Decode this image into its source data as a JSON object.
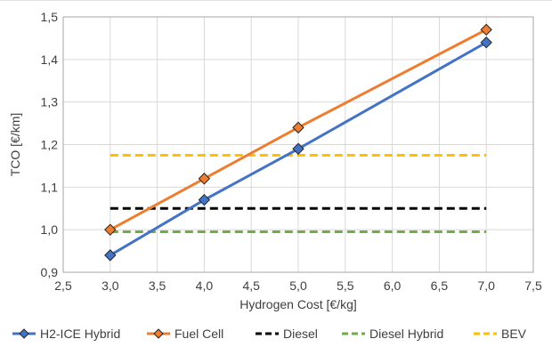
{
  "chart_data": {
    "type": "line",
    "title": "",
    "xlabel": "Hydrogen Cost [€/kg]",
    "ylabel": "TCO [€/km]",
    "xlim": [
      2.5,
      7.5
    ],
    "ylim": [
      0.9,
      1.5
    ],
    "x_ticks": [
      "2,5",
      "3,0",
      "3,5",
      "4,0",
      "4,5",
      "5,0",
      "5,5",
      "6,0",
      "6,5",
      "7,0",
      "7,5"
    ],
    "y_ticks": [
      "0,9",
      "1,0",
      "1,1",
      "1,2",
      "1,3",
      "1,4",
      "1,5"
    ],
    "grid": true,
    "legend_position": "bottom",
    "series": [
      {
        "name": "H2-ICE Hybrid",
        "style": "solid-diamond",
        "color": "#4472C4",
        "x": [
          3,
          4,
          5,
          7
        ],
        "y": [
          0.94,
          1.07,
          1.19,
          1.44
        ]
      },
      {
        "name": "Fuel Cell",
        "style": "solid-diamond",
        "color": "#ED7D31",
        "x": [
          3,
          4,
          5,
          7
        ],
        "y": [
          1.0,
          1.12,
          1.24,
          1.47
        ]
      },
      {
        "name": "Diesel",
        "style": "dashed",
        "color": "#000000",
        "x": [
          3,
          7
        ],
        "y": [
          1.05,
          1.05
        ]
      },
      {
        "name": "Diesel Hybrid",
        "style": "dashed",
        "color": "#70AD47",
        "x": [
          3,
          7
        ],
        "y": [
          0.995,
          0.995
        ]
      },
      {
        "name": "BEV",
        "style": "dashed",
        "color": "#FFC000",
        "x": [
          3,
          7
        ],
        "y": [
          1.175,
          1.175
        ]
      }
    ]
  }
}
